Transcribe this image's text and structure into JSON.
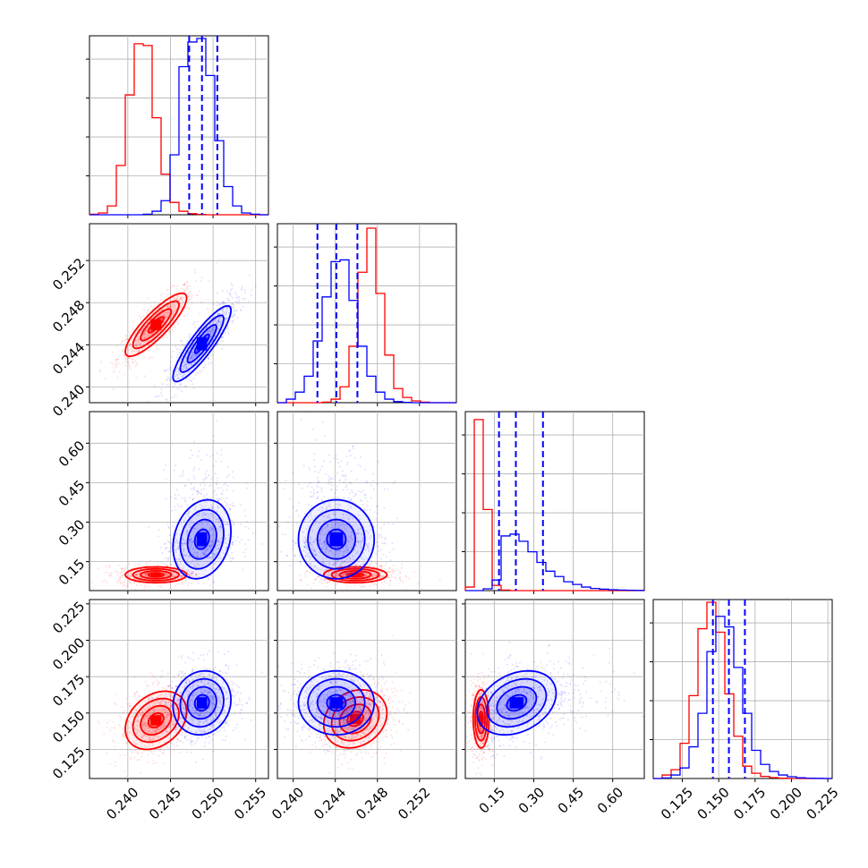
{
  "chart_data": {
    "type": "corner",
    "series": [
      {
        "color_name": "red",
        "color": "#ff0000"
      },
      {
        "color_name": "blue",
        "color": "#0000ff"
      }
    ],
    "grid": true,
    "axes": {
      "x_ticks": [
        [
          "0.240",
          "0.245",
          "0.250",
          "0.255"
        ],
        [
          "0.240",
          "0.244",
          "0.248",
          "0.252"
        ],
        [
          "0.15",
          "0.30",
          "0.45",
          "0.60"
        ],
        [
          "0.125",
          "0.150",
          "0.175",
          "0.200",
          "0.225"
        ]
      ],
      "y_ticks": [
        [],
        [
          "0.252",
          "0.248",
          "0.244",
          "0.240"
        ],
        [
          "0.60",
          "0.45",
          "0.30",
          "0.15"
        ],
        [
          "0.225",
          "0.200",
          "0.175",
          "0.150",
          "0.125"
        ]
      ]
    },
    "ranges": [
      [
        0.2355,
        0.2565
      ],
      [
        0.2385,
        0.2555
      ],
      [
        0.04,
        0.72
      ],
      [
        0.105,
        0.228
      ]
    ],
    "marginals": [
      {
        "bins": [
          0.2355,
          0.2565,
          20
        ],
        "red": [
          0.003,
          0.01,
          0.05,
          0.28,
          0.68,
          0.97,
          0.96,
          0.55,
          0.23,
          0.07,
          0.02,
          0.006,
          0.002,
          0,
          0,
          0,
          0,
          0,
          0,
          0
        ],
        "blue": [
          0,
          0,
          0,
          0,
          0,
          0,
          0.003,
          0.02,
          0.08,
          0.34,
          0.84,
          0.98,
          1.0,
          0.79,
          0.42,
          0.16,
          0.05,
          0.01,
          0.003,
          0
        ],
        "quantiles_blue": [
          0.2472,
          0.2487,
          0.2505
        ]
      },
      {
        "bins": [
          0.2385,
          0.2555,
          20
        ],
        "red": [
          0,
          0,
          0,
          0,
          0,
          0.003,
          0.02,
          0.09,
          0.32,
          0.74,
          0.99,
          0.62,
          0.27,
          0.08,
          0.03,
          0.01,
          0.003,
          0,
          0,
          0
        ],
        "blue": [
          0,
          0.02,
          0.06,
          0.15,
          0.35,
          0.6,
          0.8,
          0.81,
          0.58,
          0.32,
          0.15,
          0.06,
          0.02,
          0.006,
          0.002,
          0,
          0,
          0,
          0,
          0
        ],
        "quantiles_blue": [
          0.2423,
          0.2441,
          0.2461
        ]
      },
      {
        "bins": [
          0.04,
          0.72,
          20
        ],
        "red": [
          0.02,
          0.97,
          0.46,
          0.03,
          0.003,
          0,
          0,
          0,
          0,
          0,
          0,
          0,
          0,
          0,
          0,
          0,
          0,
          0,
          0,
          0
        ],
        "blue": [
          0,
          0,
          0.01,
          0.06,
          0.31,
          0.32,
          0.28,
          0.22,
          0.16,
          0.11,
          0.08,
          0.05,
          0.035,
          0.02,
          0.012,
          0.008,
          0.005,
          0.003,
          0.002,
          0.001
        ],
        "quantiles_blue": [
          0.168,
          0.232,
          0.335
        ]
      },
      {
        "bins": [
          0.105,
          0.228,
          20
        ],
        "red": [
          0,
          0.02,
          0.05,
          0.2,
          0.47,
          0.85,
          1.0,
          0.83,
          0.48,
          0.24,
          0.07,
          0.03,
          0.012,
          0.005,
          0.002,
          0,
          0,
          0,
          0,
          0
        ],
        "blue": [
          0,
          0.003,
          0.02,
          0.06,
          0.18,
          0.37,
          0.72,
          0.92,
          0.86,
          0.63,
          0.37,
          0.16,
          0.08,
          0.04,
          0.02,
          0.01,
          0.004,
          0.002,
          0.001,
          0
        ],
        "quantiles_blue": [
          0.146,
          0.157,
          0.168
        ]
      }
    ],
    "joint": [
      {
        "row": 1,
        "col": 0,
        "red": {
          "mean": [
            0.2433,
            0.2459
          ],
          "sd": [
            0.0018,
            0.0015
          ],
          "rho": 0.85
        },
        "blue": {
          "mean": [
            0.2487,
            0.2441
          ],
          "sd": [
            0.0017,
            0.0018
          ],
          "rho": 0.88
        }
      },
      {
        "row": 2,
        "col": 0,
        "red": {
          "mean": [
            0.2433,
            0.1
          ],
          "sd": [
            0.0018,
            0.015
          ],
          "rho": 0.0
        },
        "blue": {
          "mean": [
            0.2487,
            0.235
          ],
          "sd": [
            0.0017,
            0.075
          ],
          "rho": 0.2
        }
      },
      {
        "row": 2,
        "col": 1,
        "red": {
          "mean": [
            0.2459,
            0.1
          ],
          "sd": [
            0.0015,
            0.015
          ],
          "rho": 0.0
        },
        "blue": {
          "mean": [
            0.2441,
            0.235
          ],
          "sd": [
            0.0018,
            0.075
          ],
          "rho": 0.0
        }
      },
      {
        "row": 3,
        "col": 0,
        "red": {
          "mean": [
            0.2433,
            0.145
          ],
          "sd": [
            0.0018,
            0.01
          ],
          "rho": 0.3
        },
        "blue": {
          "mean": [
            0.2487,
            0.157
          ],
          "sd": [
            0.0017,
            0.011
          ],
          "rho": 0.1
        }
      },
      {
        "row": 3,
        "col": 1,
        "red": {
          "mean": [
            0.2459,
            0.146
          ],
          "sd": [
            0.0015,
            0.01
          ],
          "rho": 0.2
        },
        "blue": {
          "mean": [
            0.2441,
            0.157
          ],
          "sd": [
            0.0018,
            0.011
          ],
          "rho": 0.0
        }
      },
      {
        "row": 3,
        "col": 2,
        "red": {
          "mean": [
            0.1,
            0.146
          ],
          "sd": [
            0.015,
            0.01
          ],
          "rho": 0.0
        },
        "blue": {
          "mean": [
            0.235,
            0.157
          ],
          "sd": [
            0.075,
            0.011
          ],
          "rho": 0.3
        }
      }
    ]
  }
}
